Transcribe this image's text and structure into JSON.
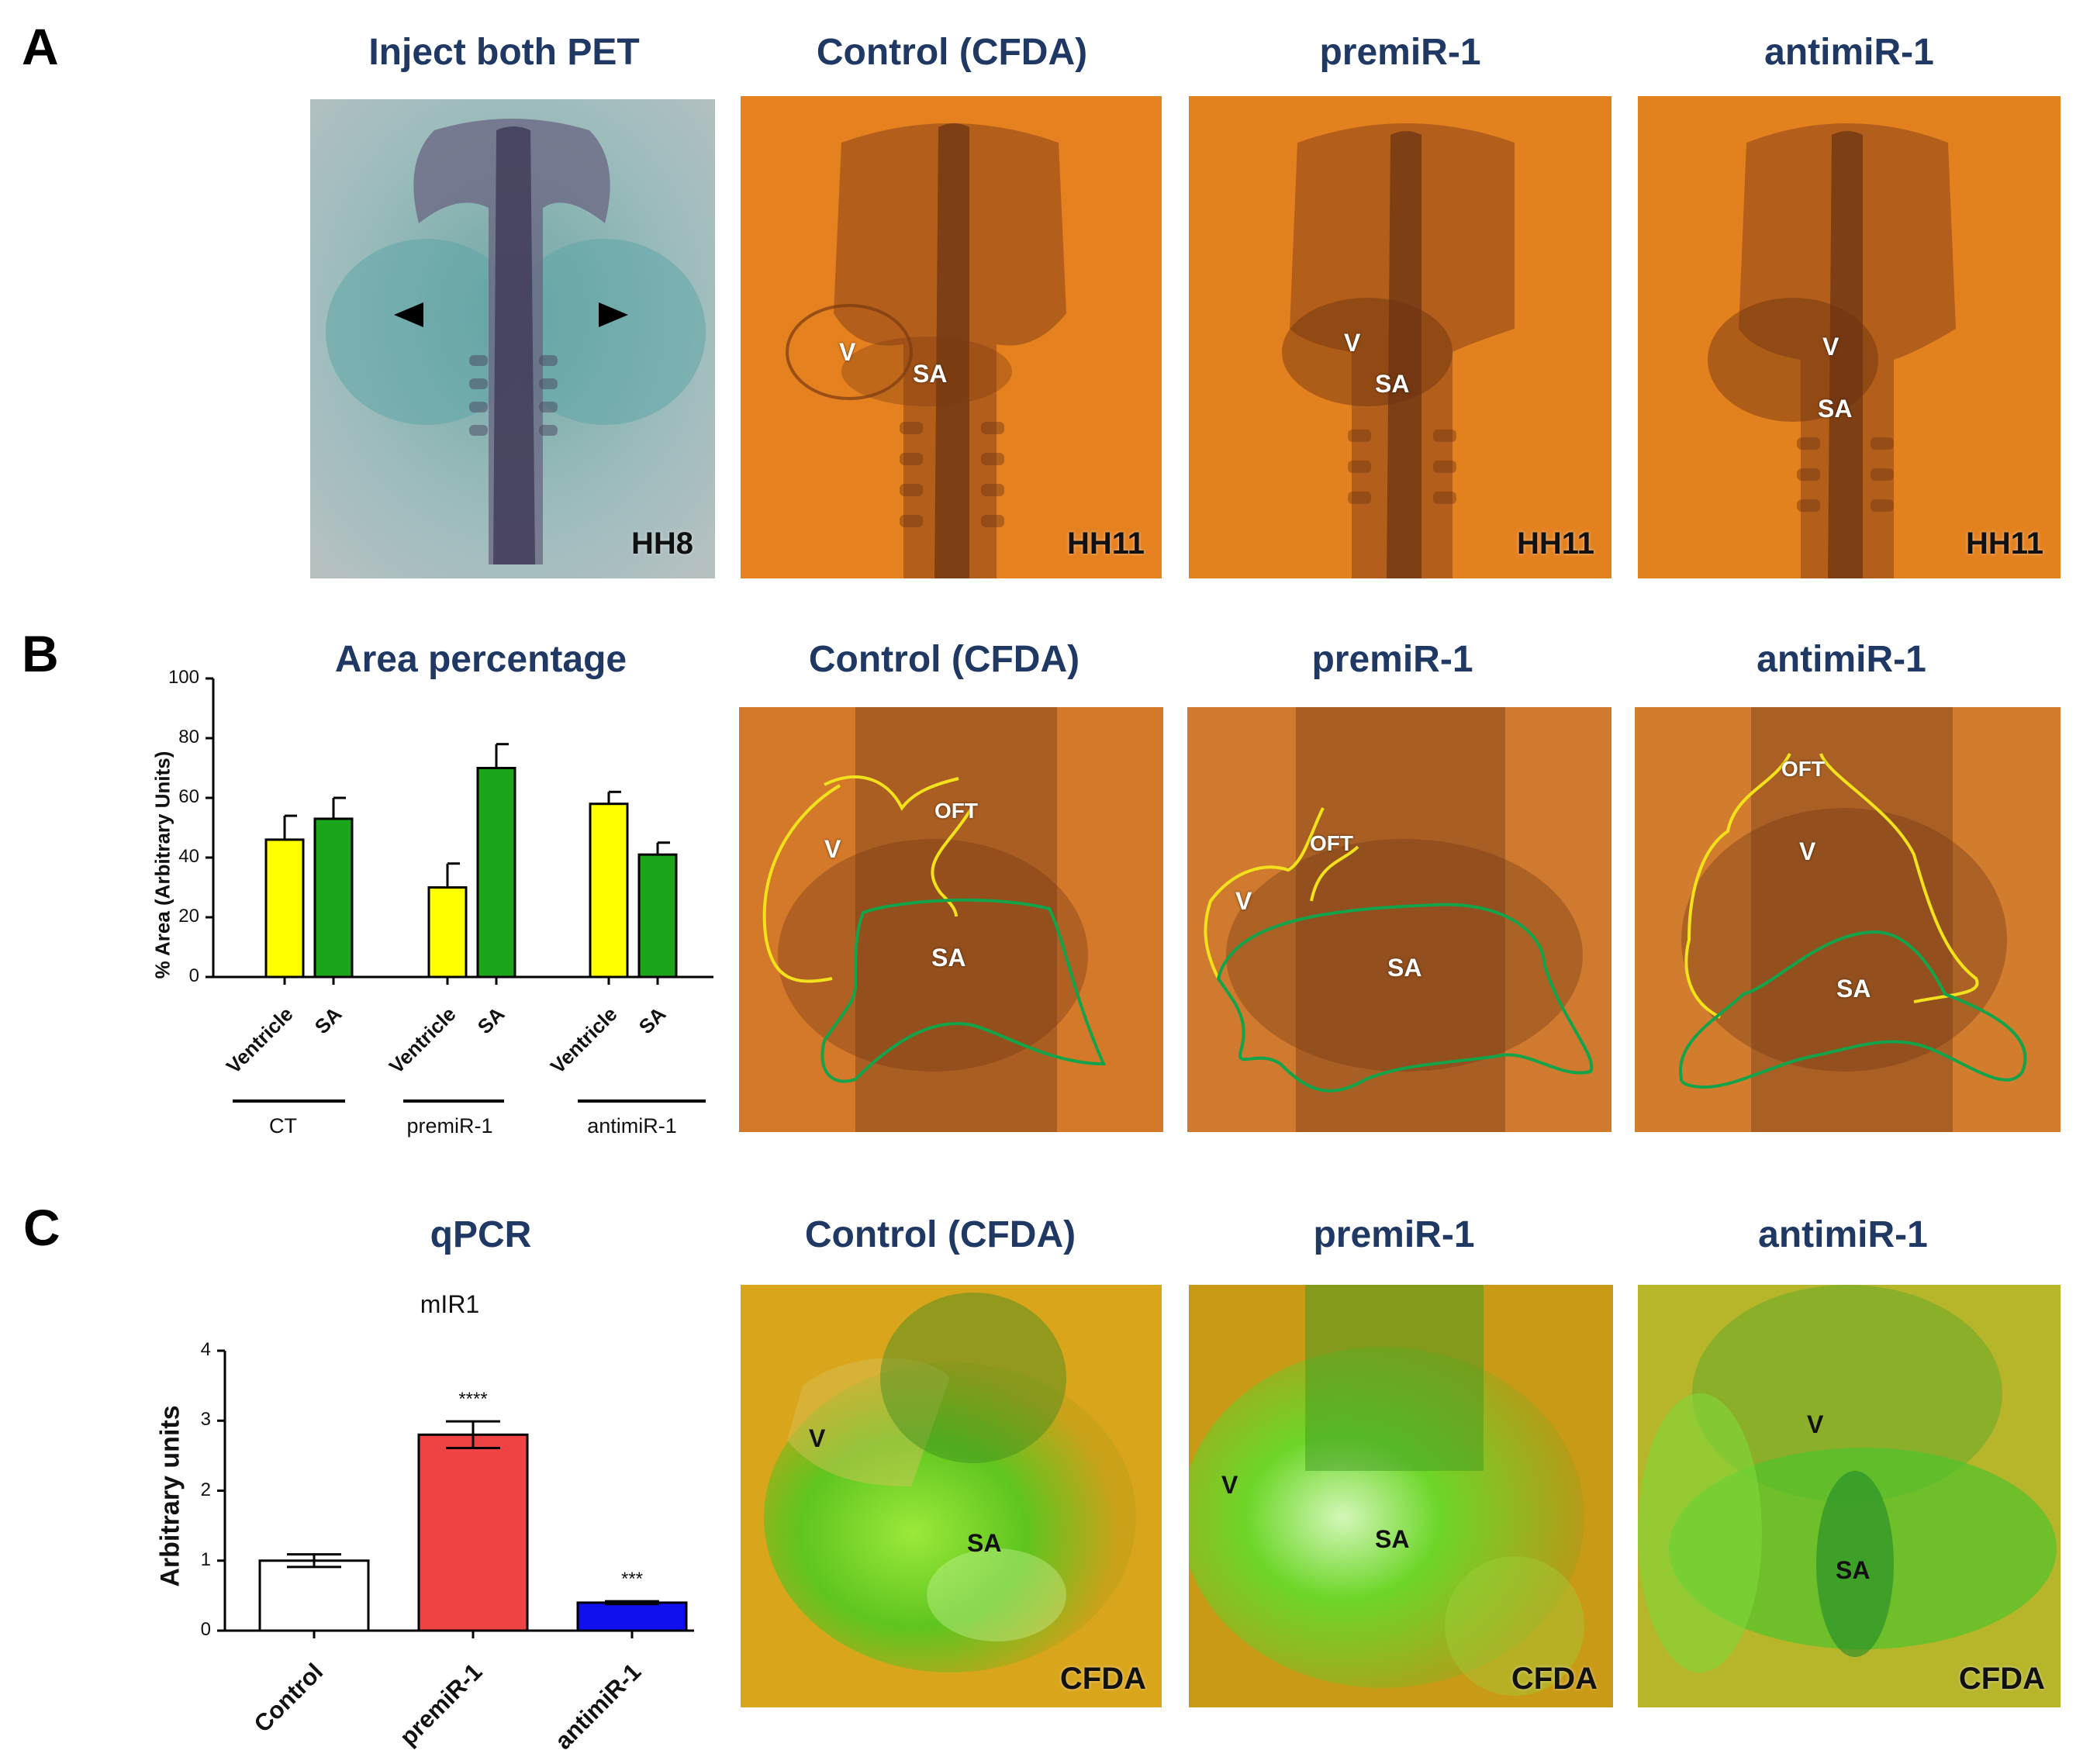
{
  "panels": {
    "A": {
      "letter": "A",
      "titles": [
        "Inject both PET",
        "Control (CFDA)",
        "premiR-1",
        "antimiR-1"
      ],
      "stages": [
        "HH8",
        "HH11",
        "HH11",
        "HH11"
      ],
      "labels": {
        "control": [
          "V",
          "SA"
        ],
        "premir": [
          "V",
          "SA"
        ],
        "antimir": [
          "V",
          "SA"
        ]
      }
    },
    "B": {
      "letter": "B",
      "titles": [
        "Area percentage",
        "Control (CFDA)",
        "premiR-1",
        "antimiR-1"
      ],
      "labels": {
        "control": [
          "V",
          "OFT",
          "SA"
        ],
        "premir": [
          "V",
          "OFT",
          "SA"
        ],
        "antimir": [
          "OFT",
          "V",
          "SA"
        ]
      }
    },
    "C": {
      "letter": "C",
      "titles": [
        "qPCR",
        "Control (CFDA)",
        "premiR-1",
        "antimiR-1"
      ],
      "stain": [
        "CFDA",
        "CFDA",
        "CFDA"
      ],
      "labels": {
        "control": [
          "V",
          "SA"
        ],
        "premir": [
          "V",
          "SA"
        ],
        "antimir": [
          "V",
          "SA"
        ]
      }
    }
  },
  "chart_data": [
    {
      "type": "bar",
      "title": "Area percentage",
      "ylabel": "% Area (Arbitrary Units)",
      "ylim": [
        0,
        100
      ],
      "yticks": [
        0,
        20,
        40,
        60,
        80,
        100
      ],
      "categories": [
        "Ventricle",
        "SA",
        "Ventricle",
        "SA",
        "Ventricle",
        "SA"
      ],
      "groups": [
        "CT",
        "premiR-1",
        "antimiR-1"
      ],
      "values": [
        46,
        53,
        30,
        70,
        58,
        41
      ],
      "errors": [
        8,
        7,
        8,
        8,
        4,
        4
      ],
      "colors": [
        "#ffff00",
        "#1aa51a",
        "#ffff00",
        "#1aa51a",
        "#ffff00",
        "#1aa51a"
      ]
    },
    {
      "type": "bar",
      "title": "mIR1",
      "ylabel": "Arbitrary units",
      "ylim": [
        0,
        4
      ],
      "yticks": [
        0,
        1,
        2,
        3,
        4
      ],
      "categories": [
        "Control",
        "premiR-1",
        "antimiR-1"
      ],
      "values": [
        1.0,
        2.8,
        0.4
      ],
      "errors": [
        0.09,
        0.19,
        0.02
      ],
      "significance": [
        "",
        "****",
        "***"
      ],
      "colors": [
        "#ffffff",
        "#f04444",
        "#1010ee"
      ]
    }
  ]
}
